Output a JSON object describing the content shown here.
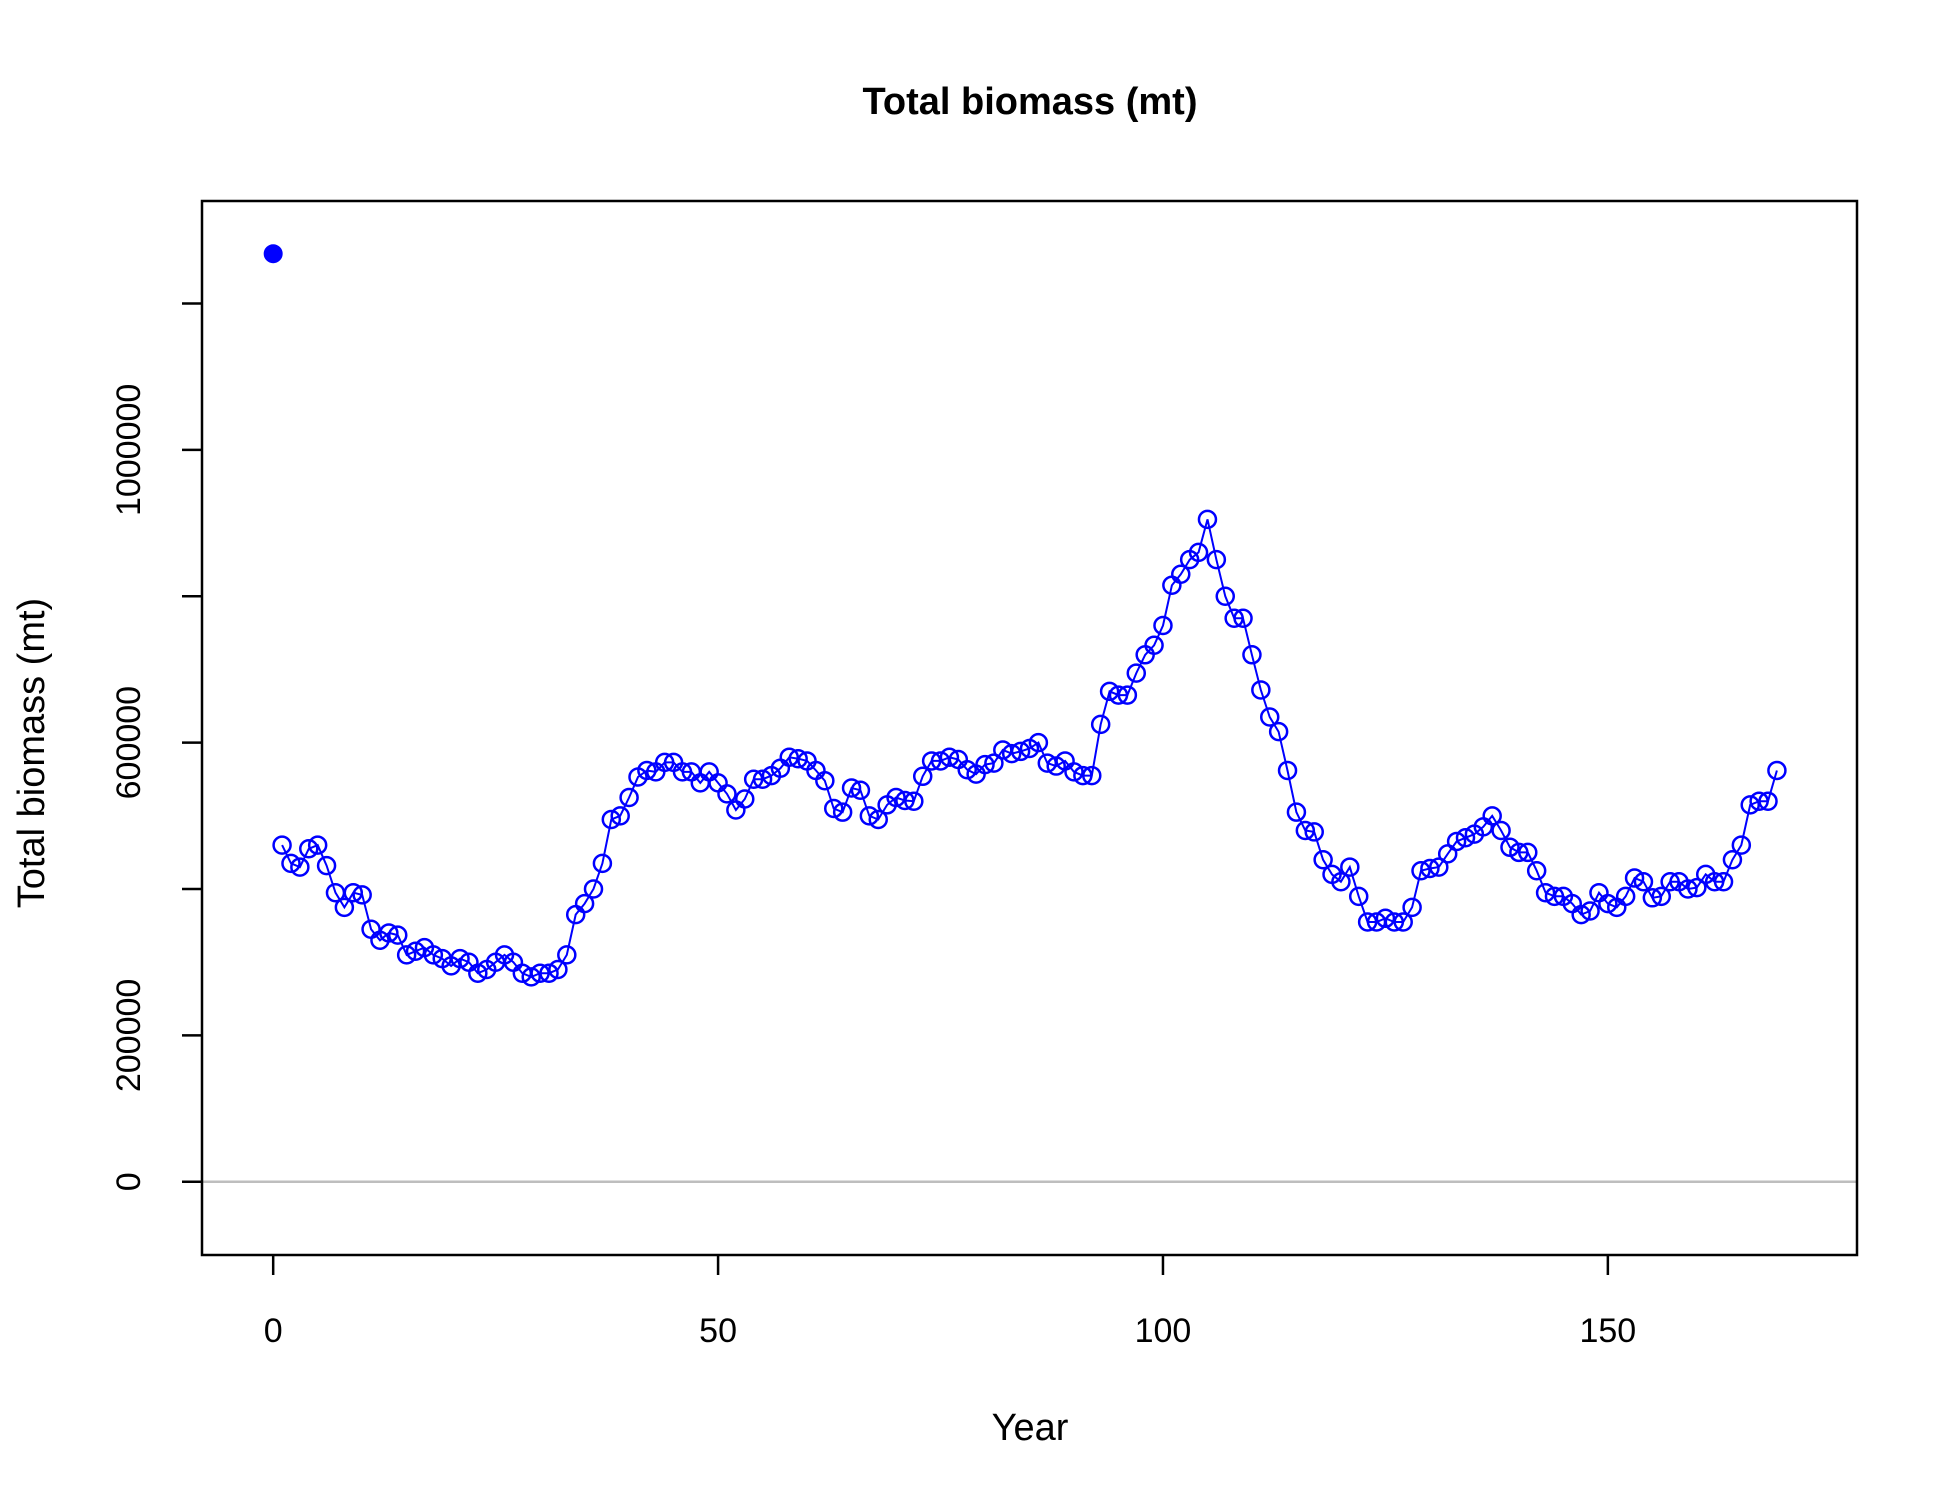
{
  "chart_data": {
    "type": "line",
    "title": "Total biomass (mt)",
    "xlabel": "Year",
    "ylabel": "Total biomass (mt)",
    "xlim": [
      -8,
      178
    ],
    "ylim": [
      -100000,
      1340000
    ],
    "x_ticks": [
      0,
      50,
      100,
      150
    ],
    "x_tick_labels": [
      "0",
      "50",
      "100",
      "150"
    ],
    "y_ticks": [
      0,
      200000,
      400000,
      600000,
      800000,
      1000000,
      1200000
    ],
    "y_tick_labels": [
      "0",
      "200000",
      "",
      "600000",
      "",
      "1000000",
      ""
    ],
    "reference_line": {
      "y": 0,
      "color": "#bebebe"
    },
    "colors": {
      "series": "#0000ff",
      "frame": "#000000"
    },
    "grid": false,
    "legend": "none",
    "virgin_point": {
      "x": 0,
      "y": 1268000,
      "marker": "filled-circle"
    },
    "series": [
      {
        "marker": "open-circle",
        "x": [
          1,
          2,
          3,
          4,
          5,
          6,
          7,
          8,
          9,
          10,
          11,
          12,
          13,
          14,
          15,
          16,
          17,
          18,
          19,
          20,
          21,
          22,
          23,
          24,
          25,
          26,
          27,
          28,
          29,
          30,
          31,
          32,
          33,
          34,
          35,
          36,
          37,
          38,
          39,
          40,
          41,
          42,
          43,
          44,
          45,
          46,
          47,
          48,
          49,
          50,
          51,
          52,
          53,
          54,
          55,
          56,
          57,
          58,
          59,
          60,
          61,
          62,
          63,
          64,
          65,
          66,
          67,
          68,
          69,
          70,
          71,
          72,
          73,
          74,
          75,
          76,
          77,
          78,
          79,
          80,
          81,
          82,
          83,
          84,
          85,
          86,
          87,
          88,
          89,
          90,
          91,
          92,
          93,
          94,
          95,
          96,
          97,
          98,
          99,
          100,
          101,
          102,
          103,
          104,
          105,
          106,
          107,
          108,
          109,
          110,
          111,
          112,
          113,
          114,
          115,
          116,
          117,
          118,
          119,
          120,
          121,
          122,
          123,
          124,
          125,
          126,
          127,
          128,
          129,
          130,
          131,
          132,
          133,
          134,
          135,
          136,
          137,
          138,
          139,
          140,
          141,
          142,
          143,
          144,
          145,
          146,
          147,
          148,
          149,
          150,
          151,
          152,
          153,
          154,
          155,
          156,
          157,
          158,
          159,
          160,
          161,
          162,
          163,
          164,
          165,
          166,
          167,
          168,
          169
        ],
        "y": [
          460000,
          435000,
          430000,
          455000,
          460000,
          432000,
          395000,
          375000,
          395000,
          392000,
          345000,
          330000,
          340000,
          337000,
          310000,
          315000,
          320000,
          310000,
          305000,
          295000,
          305000,
          300000,
          285000,
          290000,
          300000,
          310000,
          300000,
          285000,
          280000,
          285000,
          285000,
          290000,
          310000,
          365000,
          380000,
          400000,
          435000,
          495000,
          500000,
          525000,
          553000,
          562000,
          560000,
          573000,
          573000,
          560000,
          560000,
          545000,
          560000,
          545000,
          530000,
          508000,
          523000,
          550000,
          550000,
          555000,
          565000,
          580000,
          578000,
          575000,
          562000,
          548000,
          510000,
          505000,
          538000,
          535000,
          500000,
          495000,
          515000,
          525000,
          521000,
          520000,
          554000,
          575000,
          575000,
          580000,
          577000,
          563000,
          557000,
          570000,
          572000,
          590000,
          585000,
          588000,
          592000,
          600000,
          572000,
          568000,
          575000,
          560000,
          555000,
          555000,
          625000,
          670000,
          665000,
          665000,
          695000,
          720000,
          733000,
          760000,
          815000,
          830000,
          850000,
          860000,
          905000,
          850000,
          800000,
          770000,
          770000,
          720000,
          672000,
          635000,
          615000,
          562000,
          505000,
          480000,
          478000,
          440000,
          420000,
          410000,
          430000,
          390000,
          355000,
          355000,
          360000,
          355000,
          355000,
          375000,
          425000,
          428000,
          430000,
          448000,
          465000,
          470000,
          475000,
          485000,
          500000,
          480000,
          457000,
          450000,
          450000,
          425000,
          395000,
          390000,
          390000,
          380000,
          365000,
          370000,
          395000,
          380000,
          375000,
          390000,
          415000,
          410000,
          388000,
          390000,
          410000,
          410000,
          400000,
          402000,
          420000,
          410000,
          410000,
          440000,
          460000,
          515000,
          520000,
          520000,
          562000
        ]
      }
    ]
  }
}
